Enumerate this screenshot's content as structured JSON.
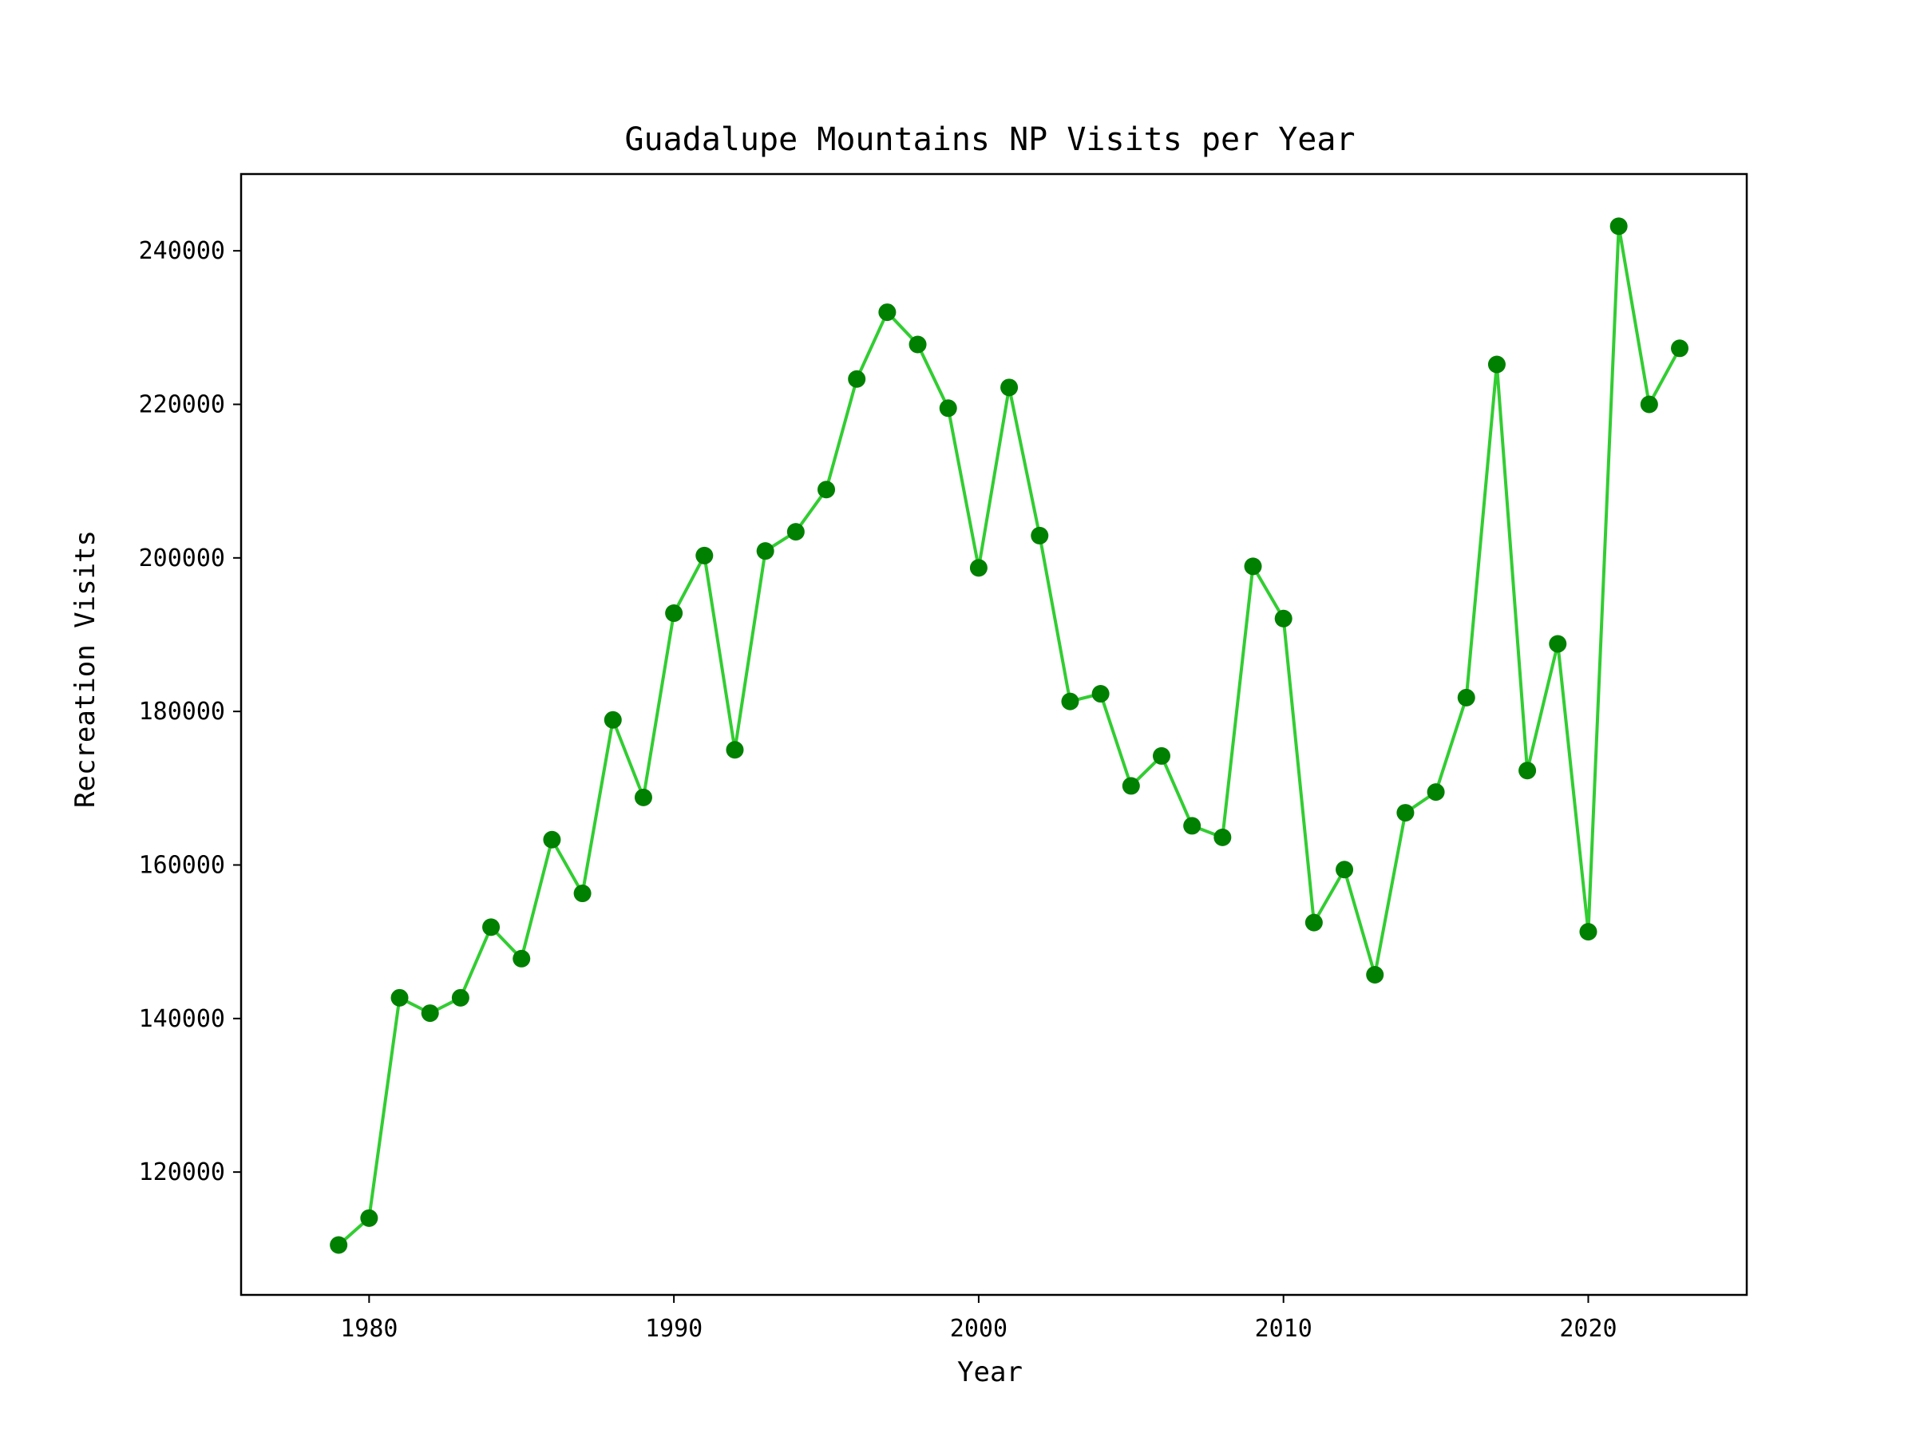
{
  "chart_data": {
    "type": "line",
    "title": "Guadalupe Mountains NP Visits per Year",
    "xlabel": "Year",
    "ylabel": "Recreation Visits",
    "xlim": [
      1975.8,
      2025.2
    ],
    "ylim": [
      104000,
      250000
    ],
    "xticks": [
      "1980",
      "1990",
      "2000",
      "2010",
      "2020"
    ],
    "yticks": [
      "120000",
      "140000",
      "160000",
      "180000",
      "200000",
      "220000",
      "240000"
    ],
    "grid": false,
    "line_color": "#32cd32",
    "marker_color": "#008000",
    "series": [
      {
        "x": [
          1979,
          1980,
          1981,
          1982,
          1983,
          1984,
          1985,
          1986,
          1987,
          1988,
          1989,
          1990,
          1991,
          1992,
          1993,
          1994,
          1995,
          1996,
          1997,
          1998,
          1999,
          2000,
          2001,
          2002,
          2003,
          2004,
          2005,
          2006,
          2007,
          2008,
          2009,
          2010,
          2011,
          2012,
          2013,
          2014,
          2015,
          2016,
          2017,
          2018,
          2019,
          2020,
          2021,
          2022,
          2023
        ],
        "values": [
          110500,
          114000,
          142700,
          140700,
          142700,
          151900,
          147800,
          163300,
          156300,
          178900,
          168800,
          192800,
          200300,
          175000,
          200900,
          203400,
          208900,
          223300,
          232000,
          227800,
          219500,
          198700,
          222200,
          202900,
          181300,
          182300,
          170300,
          174200,
          165100,
          163600,
          198900,
          192100,
          152500,
          159400,
          145700,
          166800,
          169500,
          181800,
          225200,
          172300,
          188800,
          151300,
          243200,
          220000,
          227300
        ]
      }
    ]
  }
}
